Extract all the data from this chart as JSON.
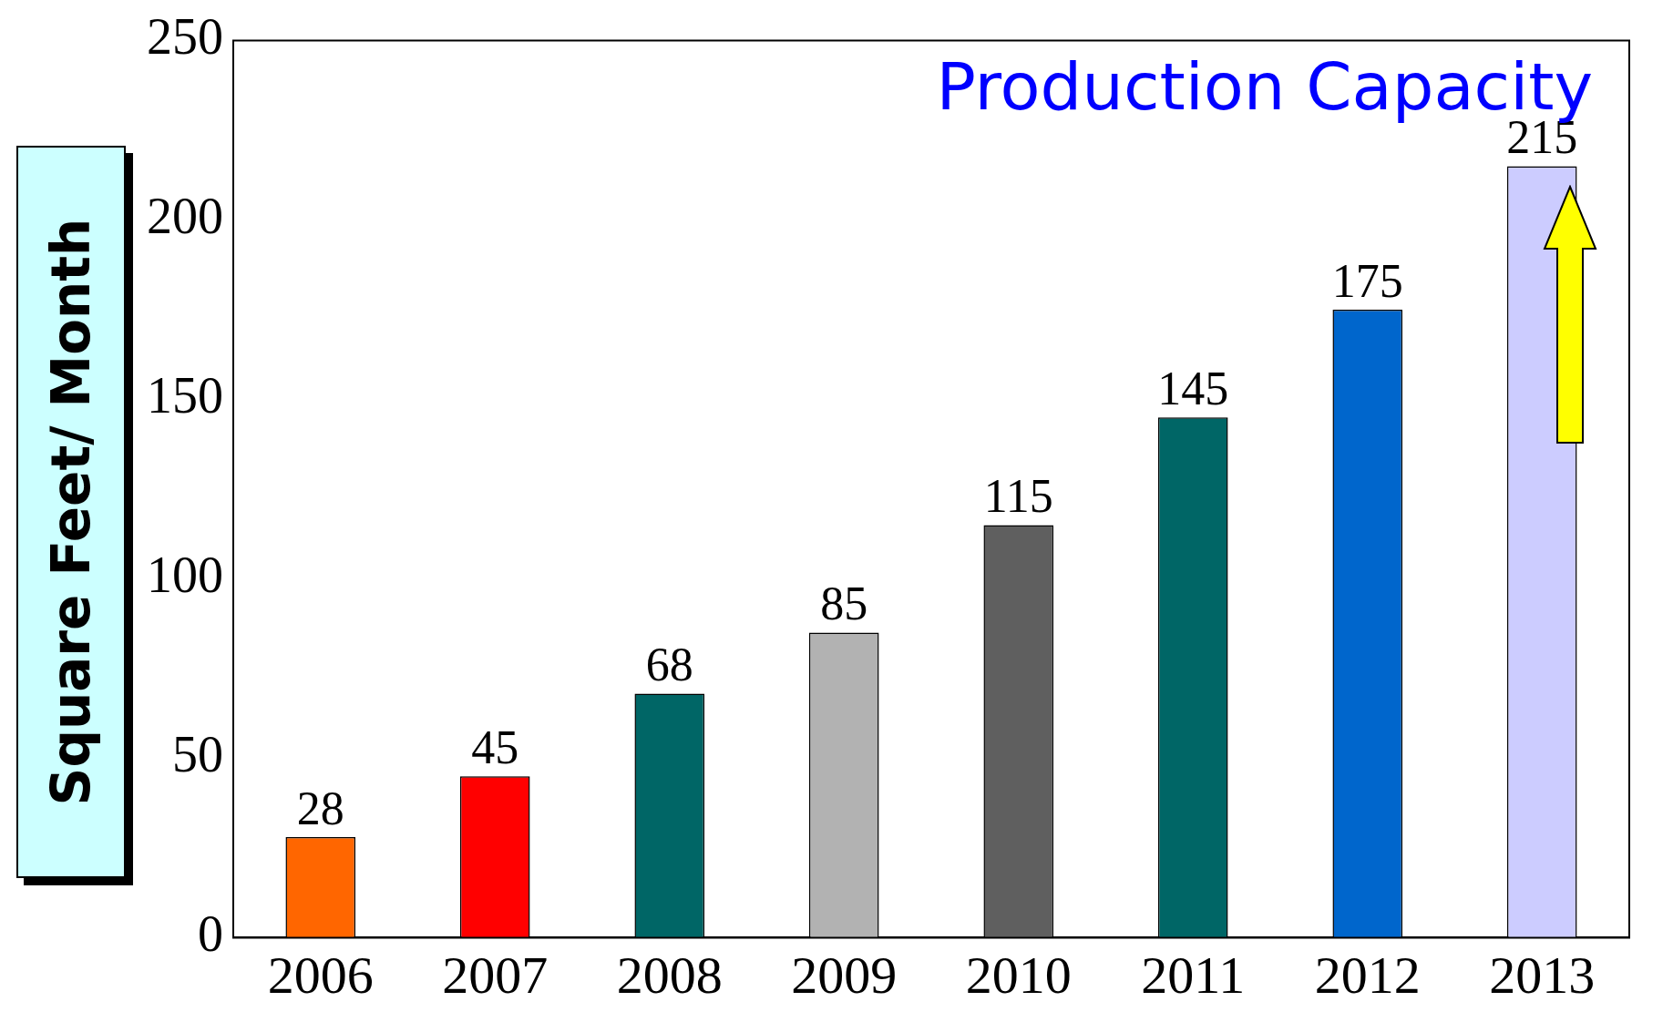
{
  "chart_data": {
    "type": "bar",
    "title": "Production Capacity",
    "ylabel": "Square Feet/ Month",
    "categories": [
      "2006",
      "2007",
      "2008",
      "2009",
      "2010",
      "2011",
      "2012",
      "2013"
    ],
    "values": [
      28,
      45,
      68,
      85,
      115,
      145,
      175,
      215
    ],
    "colors": [
      "#ff6600",
      "#ff0000",
      "#006666",
      "#b2b2b2",
      "#5f5f5f",
      "#006666",
      "#0066cc",
      "#ccccff"
    ],
    "ylim": [
      0,
      250
    ],
    "yticks": [
      0,
      50,
      100,
      150,
      200,
      250
    ],
    "grid": false,
    "legend": false,
    "data_labels": true
  }
}
